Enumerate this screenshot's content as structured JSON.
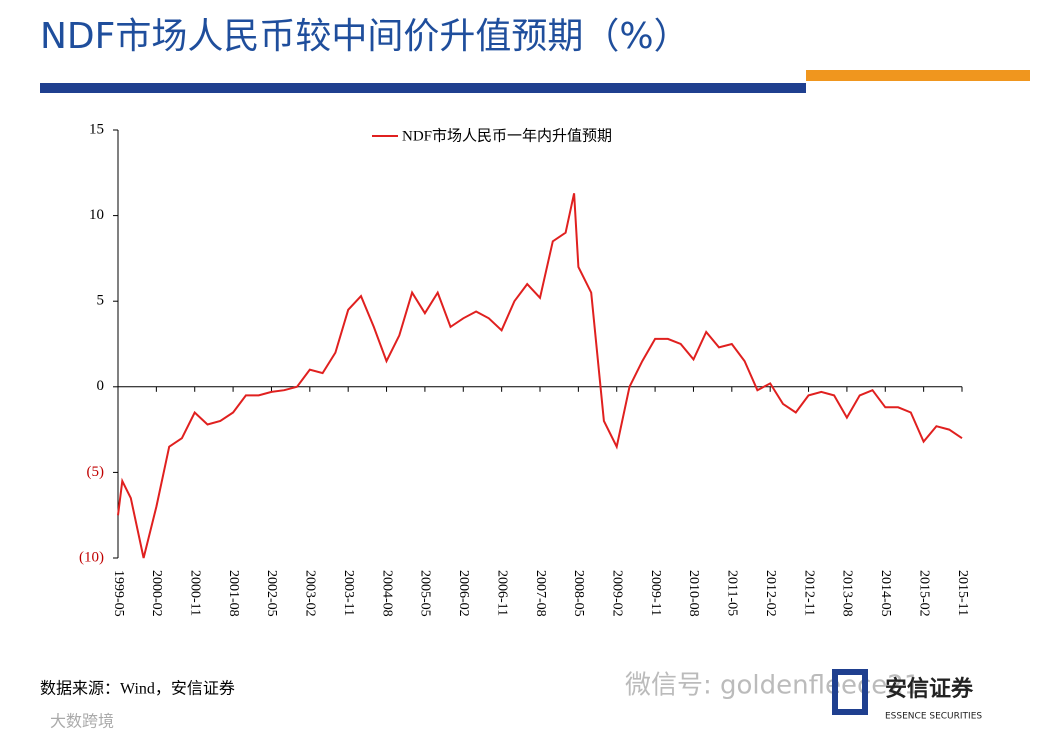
{
  "chart_data": {
    "type": "line",
    "title": "NDF市场人民币较中间价升值预期（%）",
    "x": [
      "1999-05",
      "1999-06",
      "1999-08",
      "1999-11",
      "2000-02",
      "2000-05",
      "2000-08",
      "2000-11",
      "2001-02",
      "2001-05",
      "2001-08",
      "2001-11",
      "2002-02",
      "2002-05",
      "2002-08",
      "2002-11",
      "2003-02",
      "2003-05",
      "2003-08",
      "2003-11",
      "2004-02",
      "2004-05",
      "2004-08",
      "2004-11",
      "2005-02",
      "2005-05",
      "2005-08",
      "2005-11",
      "2006-02",
      "2006-05",
      "2006-08",
      "2006-11",
      "2007-02",
      "2007-05",
      "2007-08",
      "2007-11",
      "2008-02",
      "2008-04",
      "2008-05",
      "2008-08",
      "2008-11",
      "2009-02",
      "2009-05",
      "2009-08",
      "2009-11",
      "2010-02",
      "2010-05",
      "2010-08",
      "2010-11",
      "2011-02",
      "2011-05",
      "2011-08",
      "2011-11",
      "2012-02",
      "2012-05",
      "2012-08",
      "2012-11",
      "2013-02",
      "2013-05",
      "2013-08",
      "2013-11",
      "2014-02",
      "2014-05",
      "2014-08",
      "2014-11",
      "2015-02",
      "2015-05",
      "2015-08",
      "2015-11"
    ],
    "series": [
      {
        "name": "NDF市场人民币一年内升值预期",
        "color": "#e0201f",
        "values": [
          -7.5,
          -5.5,
          -6.5,
          -10,
          -7,
          -3.5,
          -3,
          -1.5,
          -2.2,
          -2,
          -1.5,
          -0.5,
          -0.5,
          -0.3,
          -0.2,
          0,
          1,
          0.8,
          2,
          4.5,
          5.3,
          3.5,
          1.5,
          3,
          5.5,
          4.3,
          5.5,
          3.5,
          4,
          4.4,
          4,
          3.3,
          5,
          6,
          5.2,
          8.5,
          9,
          11.3,
          7,
          5.5,
          -2,
          -3.5,
          0,
          1.5,
          2.8,
          2.8,
          2.5,
          1.6,
          3.2,
          2.3,
          2.5,
          1.5,
          -0.2,
          0.2,
          -1,
          -1.5,
          -0.5,
          -0.3,
          -0.5,
          -1.8,
          -0.5,
          -0.2,
          -1.2,
          -1.2,
          -1.5,
          -3.2,
          -2.3,
          -2.5,
          -3
        ]
      }
    ],
    "xlim": [
      "1999-05",
      "2015-11"
    ],
    "xticks": [
      "1999-05",
      "2000-02",
      "2000-11",
      "2001-08",
      "2002-05",
      "2003-02",
      "2003-11",
      "2004-08",
      "2005-05",
      "2006-02",
      "2006-11",
      "2007-08",
      "2008-05",
      "2009-02",
      "2009-11",
      "2010-08",
      "2011-05",
      "2012-02",
      "2012-11",
      "2013-08",
      "2014-05",
      "2015-02",
      "2015-11"
    ],
    "ylim": [
      -10,
      15
    ],
    "yticks": [
      {
        "value": -10,
        "label": "(10)"
      },
      {
        "value": -5,
        "label": "(5)"
      },
      0,
      5,
      10,
      15
    ],
    "negative_tick_color": "#c00000",
    "legend": "top"
  },
  "source": "数据来源：Wind，安信证券",
  "watermark": "微信号: goldenfleece21",
  "logo": {
    "name": "安信证券",
    "subtitle": "ESSENCE SECURITIES"
  },
  "corner_mark": "大数跨境"
}
